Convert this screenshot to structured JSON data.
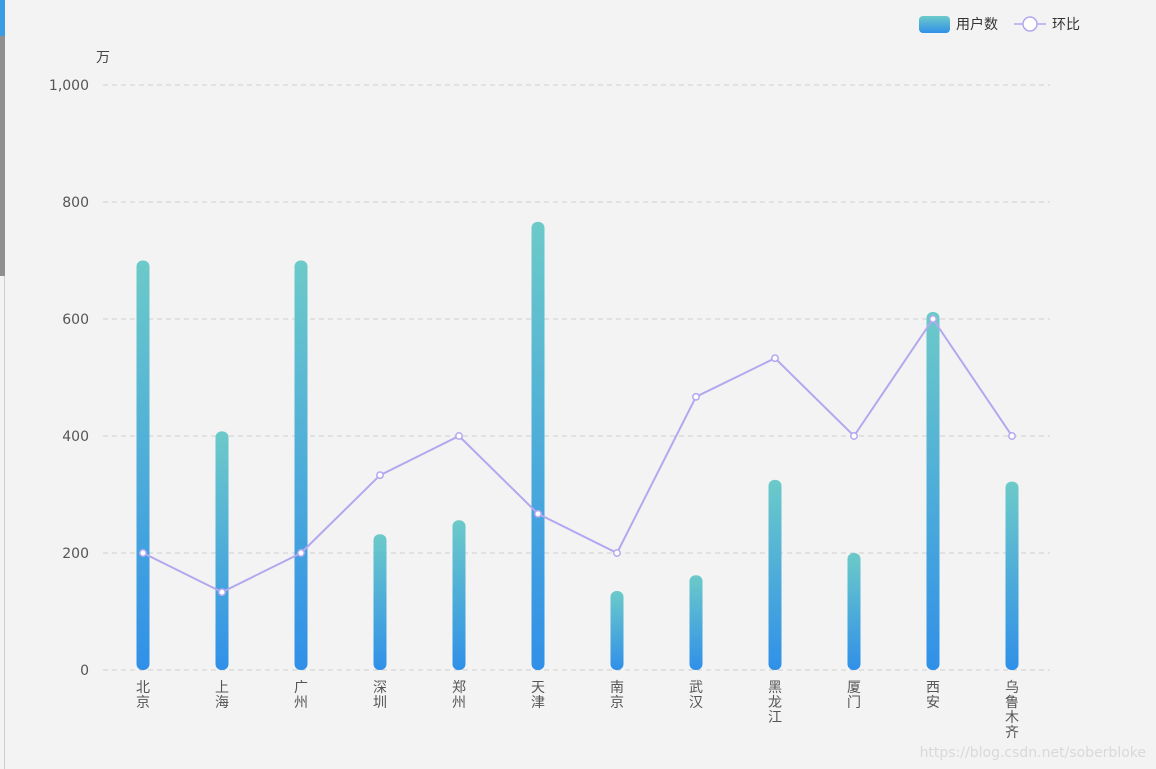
{
  "chart_data": {
    "type": "bar",
    "y_unit": "万",
    "ylim": [
      0,
      1000
    ],
    "y_ticks": [
      "0",
      "200",
      "400",
      "600",
      "800",
      "1,000"
    ],
    "y_tick_values": [
      0,
      200,
      400,
      600,
      800,
      1000
    ],
    "grid": true,
    "legend_position": "top-right",
    "categories": [
      "北京",
      "上海",
      "广州",
      "深圳",
      "郑州",
      "天津",
      "南京",
      "武汉",
      "黑龙江",
      "厦门",
      "西安",
      "乌鲁木齐"
    ],
    "series": [
      {
        "name": "用户数",
        "type": "bar",
        "values": [
          700,
          408,
          700,
          232,
          256,
          766,
          135,
          162,
          325,
          200,
          612,
          322
        ],
        "color_top": "#6ccac9",
        "color_bottom": "#3090e8"
      },
      {
        "name": "环比",
        "type": "line",
        "values": [
          200,
          133,
          200,
          333,
          400,
          267,
          200,
          467,
          533,
          400,
          600,
          400
        ],
        "color": "#b3a8ef"
      }
    ]
  },
  "watermark": "https://blog.csdn.net/soberbloke"
}
